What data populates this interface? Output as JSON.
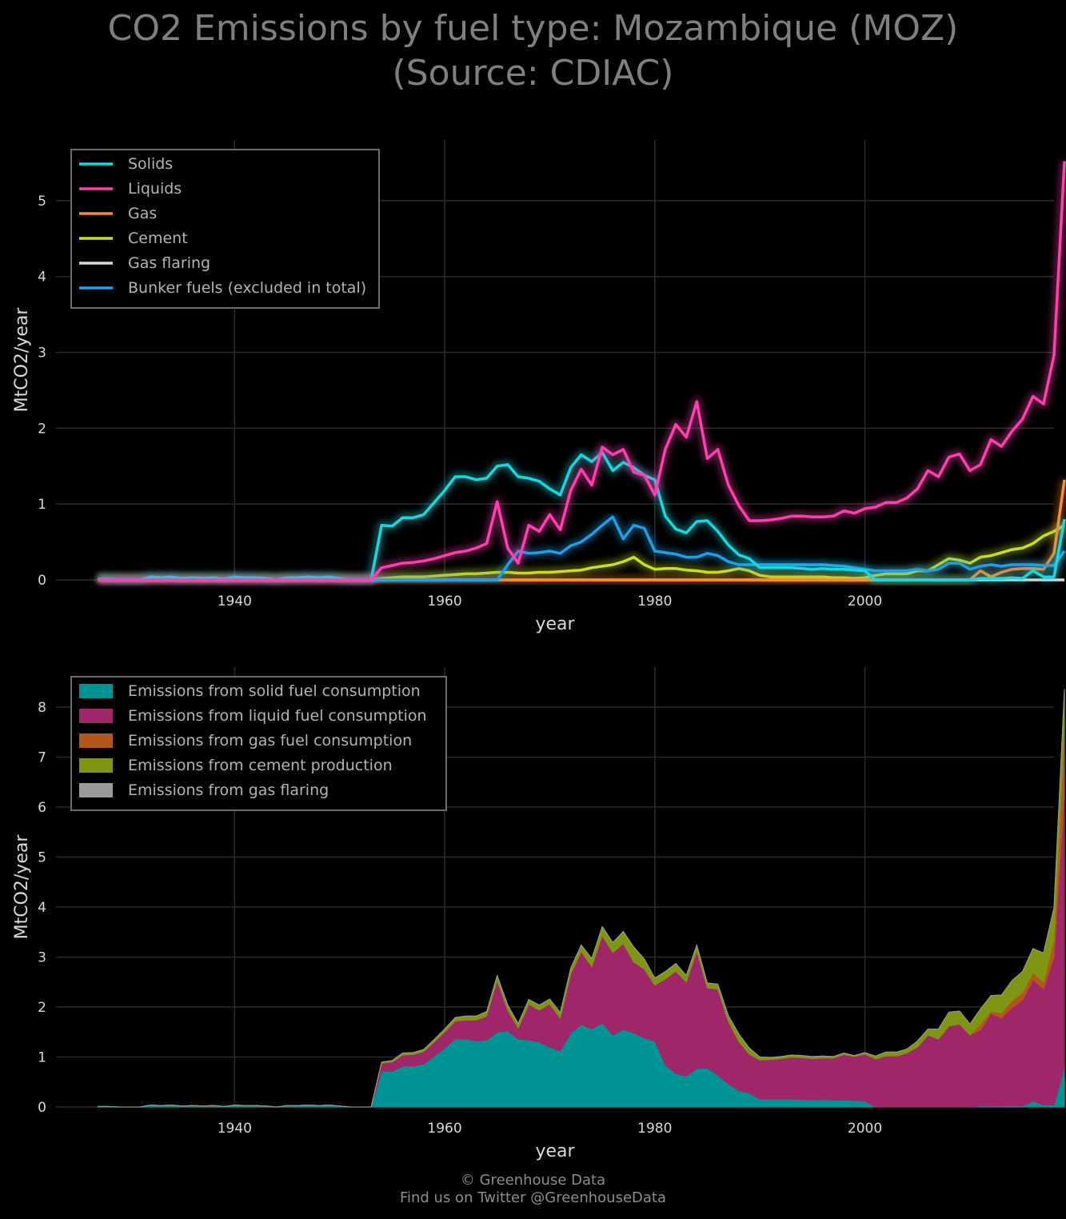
{
  "title_lines": [
    "CO2 Emissions by fuel type: Mozambique (MOZ)",
    "(Source: CDIAC)"
  ],
  "footer": {
    "line1": "© Greenhouse Data",
    "line2": "Find us on Twitter @GreenhouseData"
  },
  "colors": {
    "background": "#000000",
    "grid": "#2b2b2b",
    "text": "#d9d9d9",
    "solids": "#15d9e0",
    "liquids": "#ff3fae",
    "gas": "#ff8a2a",
    "cement": "#c8e020",
    "flaring": "#d9d9d9",
    "bunker": "#1e9fe8",
    "area_solid": "#009393",
    "area_liquid": "#a0266a",
    "area_gas": "#b3561b",
    "area_cement": "#7f9612",
    "area_flaring": "#9a9a9a"
  },
  "chart_data": [
    {
      "type": "line",
      "xlabel": "year",
      "ylabel": "MtCO2/year",
      "xlim": [
        1923,
        2018
      ],
      "ylim": [
        0,
        5.8
      ],
      "xticks": [
        1940,
        1960,
        1980,
        2000
      ],
      "yticks": [
        0,
        1,
        2,
        3,
        4,
        5
      ],
      "grid": true,
      "legend_position": "top-left",
      "x_start": 1927,
      "series": [
        {
          "name": "Solids",
          "color_key": "solids",
          "values": [
            0.01,
            0.01,
            0.0,
            0.0,
            0.0,
            0.04,
            0.03,
            0.04,
            0.02,
            0.03,
            0.02,
            0.03,
            0.01,
            0.04,
            0.03,
            0.03,
            0.02,
            0.0,
            0.03,
            0.03,
            0.04,
            0.03,
            0.04,
            0.02,
            0.0,
            0.0,
            0.0,
            0.72,
            0.71,
            0.82,
            0.82,
            0.86,
            1.02,
            1.18,
            1.36,
            1.36,
            1.32,
            1.34,
            1.5,
            1.52,
            1.36,
            1.34,
            1.3,
            1.2,
            1.12,
            1.48,
            1.65,
            1.56,
            1.68,
            1.44,
            1.55,
            1.48,
            1.38,
            1.32,
            0.84,
            0.67,
            0.62,
            0.77,
            0.78,
            0.64,
            0.46,
            0.33,
            0.28,
            0.16,
            0.16,
            0.16,
            0.16,
            0.15,
            0.14,
            0.15,
            0.14,
            0.14,
            0.13,
            0.12,
            0.0,
            0.0,
            0.0,
            0.0,
            0.0,
            0.0,
            0.0,
            0.0,
            0.0,
            0.0,
            0.02,
            0.02,
            0.02,
            0.03,
            0.02,
            0.12,
            0.04,
            0.04,
            0.8
          ]
        },
        {
          "name": "Liquids",
          "color_key": "liquids",
          "values": [
            0.0,
            0.0,
            0.0,
            0.0,
            0.0,
            0.0,
            0.0,
            0.0,
            0.0,
            0.0,
            0.0,
            0.0,
            0.0,
            0.0,
            0.0,
            0.0,
            0.0,
            0.0,
            0.0,
            0.0,
            0.0,
            0.0,
            0.0,
            0.0,
            0.0,
            0.0,
            0.0,
            0.16,
            0.19,
            0.22,
            0.23,
            0.25,
            0.28,
            0.32,
            0.36,
            0.38,
            0.42,
            0.48,
            1.03,
            0.42,
            0.22,
            0.72,
            0.64,
            0.86,
            0.66,
            1.18,
            1.46,
            1.25,
            1.75,
            1.65,
            1.72,
            1.42,
            1.38,
            1.12,
            1.72,
            2.05,
            1.88,
            2.35,
            1.6,
            1.72,
            1.25,
            0.98,
            0.78,
            0.78,
            0.79,
            0.81,
            0.84,
            0.84,
            0.83,
            0.83,
            0.84,
            0.91,
            0.88,
            0.94,
            0.96,
            1.02,
            1.02,
            1.08,
            1.2,
            1.44,
            1.36,
            1.62,
            1.66,
            1.44,
            1.52,
            1.85,
            1.76,
            1.96,
            2.12,
            2.42,
            2.32,
            2.96,
            5.52
          ]
        },
        {
          "name": "Gas",
          "color_key": "gas",
          "values": [
            0.0,
            0.0,
            0.0,
            0.0,
            0.0,
            0.0,
            0.0,
            0.0,
            0.0,
            0.0,
            0.0,
            0.0,
            0.0,
            0.0,
            0.0,
            0.0,
            0.0,
            0.0,
            0.0,
            0.0,
            0.0,
            0.0,
            0.0,
            0.0,
            0.0,
            0.0,
            0.0,
            0.0,
            0.0,
            0.0,
            0.0,
            0.0,
            0.0,
            0.0,
            0.0,
            0.0,
            0.0,
            0.0,
            0.0,
            0.0,
            0.0,
            0.0,
            0.0,
            0.0,
            0.0,
            0.0,
            0.0,
            0.0,
            0.0,
            0.0,
            0.0,
            0.0,
            0.0,
            0.0,
            0.0,
            0.0,
            0.0,
            0.0,
            0.0,
            0.0,
            0.0,
            0.0,
            0.0,
            0.0,
            0.0,
            0.0,
            0.0,
            0.0,
            0.0,
            0.0,
            0.0,
            0.0,
            0.0,
            0.0,
            0.0,
            0.0,
            0.0,
            0.0,
            0.0,
            0.0,
            0.0,
            0.0,
            0.0,
            0.0,
            0.12,
            0.04,
            0.1,
            0.14,
            0.15,
            0.15,
            0.14,
            0.35,
            1.32
          ]
        },
        {
          "name": "Cement",
          "color_key": "cement",
          "values": [
            0.0,
            0.0,
            0.0,
            0.0,
            0.0,
            0.0,
            0.0,
            0.0,
            0.0,
            0.0,
            0.0,
            0.0,
            0.0,
            0.0,
            0.0,
            0.0,
            0.0,
            0.0,
            0.0,
            0.0,
            0.0,
            0.0,
            0.0,
            0.0,
            0.0,
            0.0,
            0.0,
            0.02,
            0.03,
            0.04,
            0.04,
            0.04,
            0.05,
            0.06,
            0.07,
            0.08,
            0.08,
            0.09,
            0.1,
            0.1,
            0.09,
            0.09,
            0.1,
            0.1,
            0.11,
            0.12,
            0.13,
            0.16,
            0.18,
            0.2,
            0.24,
            0.3,
            0.2,
            0.14,
            0.15,
            0.15,
            0.13,
            0.12,
            0.1,
            0.1,
            0.12,
            0.15,
            0.12,
            0.06,
            0.04,
            0.04,
            0.04,
            0.04,
            0.04,
            0.04,
            0.03,
            0.03,
            0.02,
            0.03,
            0.06,
            0.08,
            0.08,
            0.08,
            0.12,
            0.12,
            0.2,
            0.28,
            0.26,
            0.22,
            0.3,
            0.32,
            0.36,
            0.4,
            0.42,
            0.48,
            0.58,
            0.64,
            0.72
          ]
        },
        {
          "name": "Gas flaring",
          "color_key": "flaring",
          "values": [
            0.0,
            0.0,
            0.0,
            0.0,
            0.0,
            0.0,
            0.0,
            0.0,
            0.0,
            0.0,
            0.0,
            0.0,
            0.0,
            0.0,
            0.0,
            0.0,
            0.0,
            0.0,
            0.0,
            0.0,
            0.0,
            0.0,
            0.0,
            0.0,
            0.0,
            0.0,
            0.0,
            0.0,
            0.0,
            0.0,
            0.0,
            0.0,
            0.0,
            0.0,
            0.0,
            0.0,
            0.0,
            0.0,
            0.0,
            0.0,
            0.0,
            0.0,
            0.0,
            0.0,
            0.0,
            0.0,
            0.0,
            0.0,
            0.0,
            0.0,
            0.0,
            0.0,
            0.0,
            0.0,
            0.0,
            0.0,
            0.0,
            0.0,
            0.0,
            0.0,
            0.0,
            0.0,
            0.0,
            0.0,
            0.0,
            0.0,
            0.0,
            0.0,
            0.0,
            0.0,
            0.0,
            0.0,
            0.0,
            0.0,
            0.0,
            0.0,
            0.0,
            0.0,
            0.0,
            0.0,
            0.0,
            0.0,
            0.0,
            0.0,
            0.0,
            0.0,
            0.0,
            0.0,
            0.0,
            0.0,
            0.0,
            0.0,
            0.0
          ]
        },
        {
          "name": "Bunker fuels (excluded in total)",
          "color_key": "bunker",
          "values": [
            0.0,
            0.0,
            0.0,
            0.0,
            0.0,
            0.0,
            0.0,
            0.0,
            0.0,
            0.0,
            0.0,
            0.0,
            0.0,
            0.0,
            0.0,
            0.0,
            0.0,
            0.0,
            0.0,
            0.0,
            0.0,
            0.0,
            0.0,
            0.0,
            0.0,
            0.0,
            0.0,
            0.0,
            0.0,
            0.0,
            0.0,
            0.0,
            0.0,
            0.0,
            0.0,
            0.0,
            0.0,
            0.0,
            0.0,
            0.2,
            0.38,
            0.35,
            0.36,
            0.38,
            0.35,
            0.45,
            0.5,
            0.6,
            0.72,
            0.83,
            0.54,
            0.72,
            0.68,
            0.38,
            0.36,
            0.34,
            0.3,
            0.3,
            0.35,
            0.32,
            0.24,
            0.2,
            0.2,
            0.2,
            0.2,
            0.2,
            0.2,
            0.2,
            0.2,
            0.2,
            0.19,
            0.18,
            0.16,
            0.14,
            0.12,
            0.12,
            0.12,
            0.12,
            0.14,
            0.12,
            0.14,
            0.22,
            0.22,
            0.14,
            0.18,
            0.2,
            0.18,
            0.2,
            0.2,
            0.2,
            0.19,
            0.19,
            0.38
          ]
        }
      ]
    },
    {
      "type": "area",
      "stacked": true,
      "xlabel": "year",
      "ylabel": "MtCO2/year",
      "xlim": [
        1923,
        2018
      ],
      "ylim": [
        0,
        8.8
      ],
      "xticks": [
        1940,
        1960,
        1980,
        2000
      ],
      "yticks": [
        0,
        1,
        2,
        3,
        4,
        5,
        6,
        7,
        8
      ],
      "grid": true,
      "legend_position": "top-left",
      "x_start": 1927,
      "series": [
        {
          "name": "Emissions from solid fuel consumption",
          "color_key": "area_solid",
          "source_series": "Solids"
        },
        {
          "name": "Emissions from liquid fuel consumption",
          "color_key": "area_liquid",
          "source_series": "Liquids"
        },
        {
          "name": "Emissions from gas fuel consumption",
          "color_key": "area_gas",
          "source_series": "Gas"
        },
        {
          "name": "Emissions from cement production",
          "color_key": "area_cement",
          "source_series": "Cement"
        },
        {
          "name": "Emissions from gas flaring",
          "color_key": "area_flaring",
          "source_series": "Gas flaring"
        }
      ]
    }
  ]
}
